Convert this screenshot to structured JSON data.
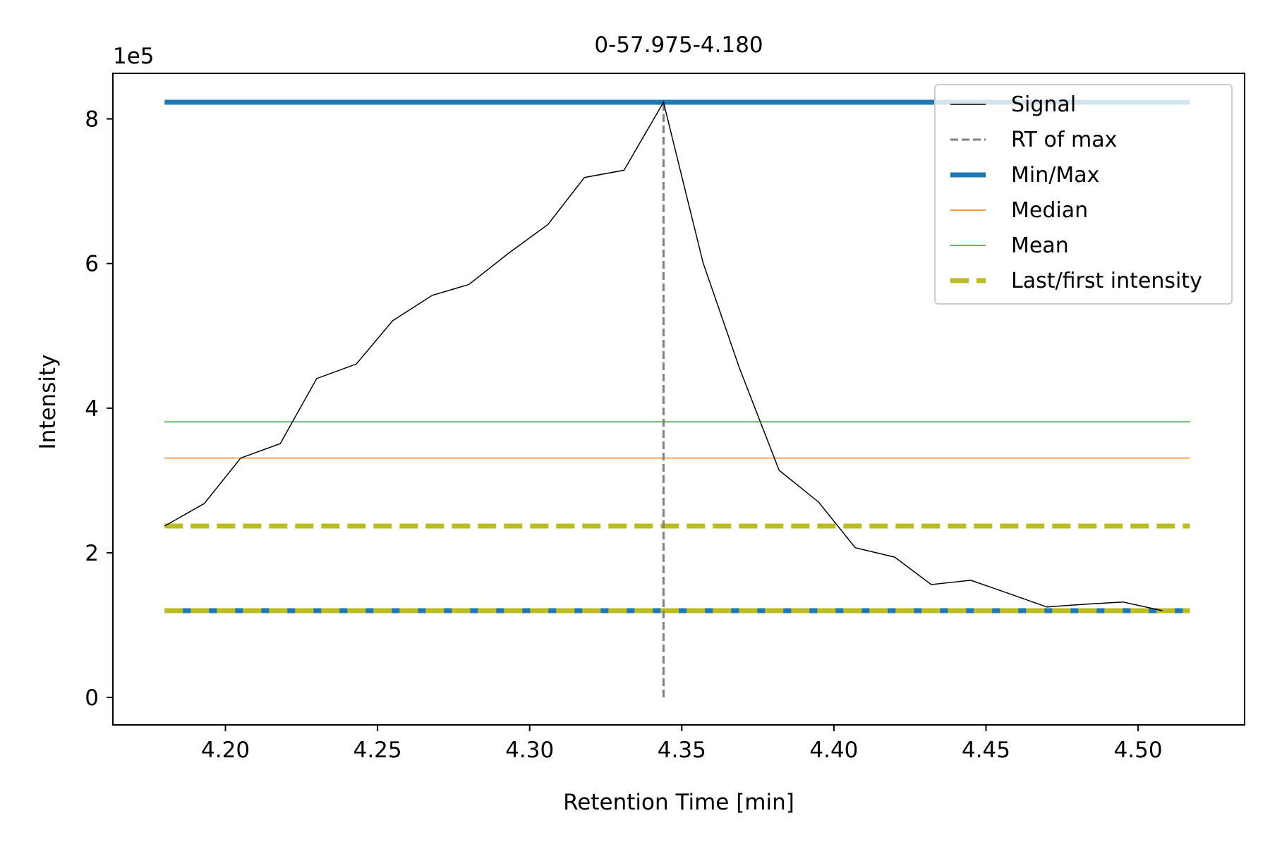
{
  "chart_data": {
    "type": "line",
    "title": "0-57.975-4.180",
    "xlabel": "Retention Time [min]",
    "ylabel": "Intensity",
    "y_offset_label": "1e5",
    "xlim": [
      4.163,
      4.535
    ],
    "ylim": [
      -38000,
      863000
    ],
    "x_ticks": [
      4.2,
      4.25,
      4.3,
      4.35,
      4.4,
      4.45,
      4.5
    ],
    "x_tick_labels": [
      "4.20",
      "4.25",
      "4.30",
      "4.35",
      "4.40",
      "4.45",
      "4.50"
    ],
    "y_ticks": [
      0,
      200000,
      400000,
      600000,
      800000
    ],
    "y_tick_labels": [
      "0",
      "2",
      "4",
      "6",
      "8"
    ],
    "grid": false,
    "legend_position": "top-right",
    "colors": {
      "signal": "#000000",
      "rt_of_max": "#808080",
      "min_max": "#1f77b4",
      "median": "#ff7f0e",
      "mean": "#2ca02c",
      "last_first": "#bcbd22"
    },
    "series": [
      {
        "name": "Signal",
        "x": [
          4.18,
          4.193,
          4.205,
          4.218,
          4.23,
          4.243,
          4.255,
          4.268,
          4.28,
          4.293,
          4.306,
          4.318,
          4.331,
          4.344,
          4.357,
          4.369,
          4.382,
          4.395,
          4.407,
          4.42,
          4.432,
          4.445,
          4.458,
          4.47,
          4.483,
          4.495,
          4.508
        ],
        "y": [
          237000,
          268000,
          331000,
          351000,
          441000,
          461000,
          521000,
          556000,
          571000,
          614000,
          654000,
          719000,
          729000,
          823000,
          601000,
          455000,
          314000,
          270000,
          207000,
          194000,
          156000,
          162000,
          143000,
          125000,
          129000,
          132000,
          120000
        ]
      }
    ],
    "reference_lines": {
      "rt_of_max": {
        "name": "RT of max",
        "x": 4.344,
        "y_range": [
          0,
          823000
        ]
      },
      "min_max": {
        "name": "Min/Max",
        "values": [
          120000,
          823000
        ]
      },
      "median": {
        "name": "Median",
        "value": 331000
      },
      "mean": {
        "name": "Mean",
        "value": 381000
      },
      "last_first": {
        "name": "Last/first intensity",
        "values": [
          120000,
          237000
        ]
      },
      "x_span": [
        4.18,
        4.517
      ]
    },
    "legend": [
      "Signal",
      "RT of max",
      "Min/Max",
      "Median",
      "Mean",
      "Last/first intensity"
    ]
  }
}
